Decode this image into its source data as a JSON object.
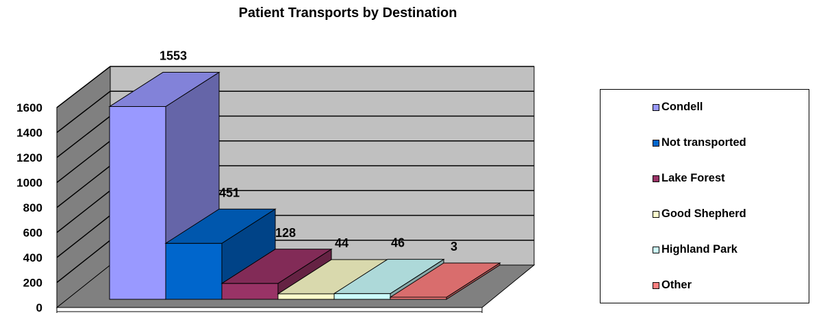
{
  "chart_data": {
    "type": "bar",
    "title": "Patient Transports by Destination",
    "categories": [
      "Condell",
      "Not transported",
      "Lake Forest",
      "Good Shepherd",
      "Highland Park",
      "Other"
    ],
    "values": [
      1553,
      451,
      128,
      44,
      46,
      3
    ],
    "colors": [
      "#9999ff",
      "#0066cc",
      "#993366",
      "#ffffcc",
      "#ccffff",
      "#ff8080"
    ],
    "yticks": [
      0,
      200,
      400,
      600,
      800,
      1000,
      1200,
      1400,
      1600
    ],
    "ylim": [
      0,
      1600
    ],
    "grid": true,
    "legend_position": "right",
    "three_d": true,
    "data_labels": [
      "1553",
      "451",
      "128",
      "44",
      "46",
      "3"
    ]
  }
}
